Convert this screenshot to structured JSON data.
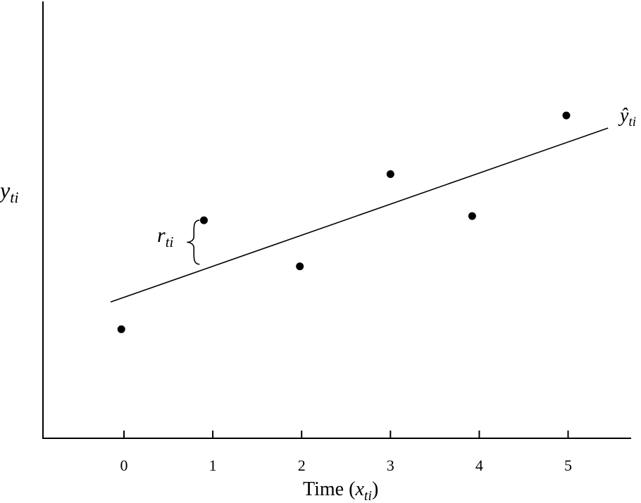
{
  "chart_data": {
    "type": "scatter",
    "title": "",
    "xlabel": {
      "prefix": "Time (",
      "var": "x",
      "sub": "ti",
      "suffix": ")"
    },
    "ylabel": {
      "var": "y",
      "sub": "ti"
    },
    "x_ticks": [
      "0",
      "1",
      "2",
      "3",
      "4",
      "5"
    ],
    "xlim": [
      -0.9,
      5.7
    ],
    "ylim": [
      0,
      10
    ],
    "grid": false,
    "points": [
      {
        "x": -0.03,
        "y": 2.6
      },
      {
        "x": 0.9,
        "y": 5.2
      },
      {
        "x": 1.98,
        "y": 4.1
      },
      {
        "x": 3.0,
        "y": 6.3
      },
      {
        "x": 3.92,
        "y": 5.3
      },
      {
        "x": 4.98,
        "y": 7.7
      }
    ],
    "fitted_line": {
      "x": [
        -0.15,
        5.45
      ],
      "y": [
        3.25,
        7.4
      ],
      "label": {
        "var": "ŷ",
        "sub": "ti"
      }
    },
    "residual_annotation": {
      "var": "r",
      "sub": "ti",
      "x": 0.78,
      "y_from": 4.15,
      "y_to": 5.2
    }
  }
}
